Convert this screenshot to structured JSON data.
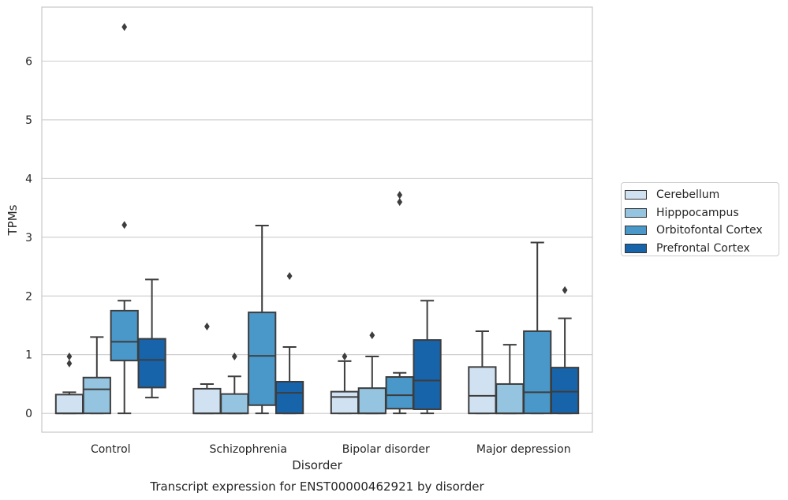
{
  "chart_data": {
    "type": "box",
    "title": "",
    "xlabel": "Disorder",
    "ylabel": "TPMs",
    "caption": "Transcript expression for ENST00000462921 by disorder",
    "ylim": [
      -0.32,
      6.92
    ],
    "yticks": [
      0,
      1,
      2,
      3,
      4,
      5,
      6
    ],
    "grid": "horizontal",
    "legend_position": "right",
    "categories": [
      "Control",
      "Schizophrenia",
      "Bipolar disorder",
      "Major depression"
    ],
    "series": [
      {
        "name": "Cerebellum",
        "color": "#d0e1f2",
        "boxes": [
          {
            "whislo": 0.0,
            "q1": 0.0,
            "med": 0.0,
            "q3": 0.32,
            "whishi": 0.36,
            "fliers": [
              0.85,
              0.97
            ]
          },
          {
            "whislo": 0.0,
            "q1": 0.0,
            "med": 0.0,
            "q3": 0.42,
            "whishi": 0.5,
            "fliers": [
              1.48
            ]
          },
          {
            "whislo": 0.0,
            "q1": 0.0,
            "med": 0.28,
            "q3": 0.37,
            "whishi": 0.89,
            "fliers": [
              0.97
            ]
          },
          {
            "whislo": 0.0,
            "q1": 0.0,
            "med": 0.3,
            "q3": 0.79,
            "whishi": 1.4,
            "fliers": []
          }
        ]
      },
      {
        "name": "Hipppocampus",
        "color": "#94c4df",
        "boxes": [
          {
            "whislo": 0.0,
            "q1": 0.0,
            "med": 0.41,
            "q3": 0.61,
            "whishi": 1.3,
            "fliers": []
          },
          {
            "whislo": 0.0,
            "q1": 0.0,
            "med": 0.0,
            "q3": 0.33,
            "whishi": 0.63,
            "fliers": [
              0.97
            ]
          },
          {
            "whislo": 0.0,
            "q1": 0.0,
            "med": 0.0,
            "q3": 0.43,
            "whishi": 0.97,
            "fliers": [
              1.33
            ]
          },
          {
            "whislo": 0.0,
            "q1": 0.0,
            "med": 0.0,
            "q3": 0.5,
            "whishi": 1.17,
            "fliers": []
          }
        ]
      },
      {
        "name": "Orbitofontal Cortex",
        "color": "#4a98c9",
        "boxes": [
          {
            "whislo": 0.0,
            "q1": 0.9,
            "med": 1.22,
            "q3": 1.75,
            "whishi": 1.92,
            "fliers": [
              3.21,
              6.58
            ]
          },
          {
            "whislo": 0.0,
            "q1": 0.14,
            "med": 0.98,
            "q3": 1.72,
            "whishi": 3.2,
            "fliers": []
          },
          {
            "whislo": 0.0,
            "q1": 0.08,
            "med": 0.31,
            "q3": 0.62,
            "whishi": 0.69,
            "fliers": [
              3.6,
              3.72
            ]
          },
          {
            "whislo": 0.0,
            "q1": 0.0,
            "med": 0.36,
            "q3": 1.4,
            "whishi": 2.91,
            "fliers": []
          }
        ]
      },
      {
        "name": "Prefrontal Cortex",
        "color": "#1764ab",
        "boxes": [
          {
            "whislo": 0.27,
            "q1": 0.44,
            "med": 0.91,
            "q3": 1.27,
            "whishi": 2.28,
            "fliers": []
          },
          {
            "whislo": 0.0,
            "q1": 0.0,
            "med": 0.35,
            "q3": 0.54,
            "whishi": 1.13,
            "fliers": [
              2.34
            ]
          },
          {
            "whislo": 0.0,
            "q1": 0.07,
            "med": 0.56,
            "q3": 1.25,
            "whishi": 1.92,
            "fliers": []
          },
          {
            "whislo": 0.0,
            "q1": 0.0,
            "med": 0.37,
            "q3": 0.78,
            "whishi": 1.62,
            "fliers": [
              2.1
            ]
          }
        ]
      }
    ]
  }
}
